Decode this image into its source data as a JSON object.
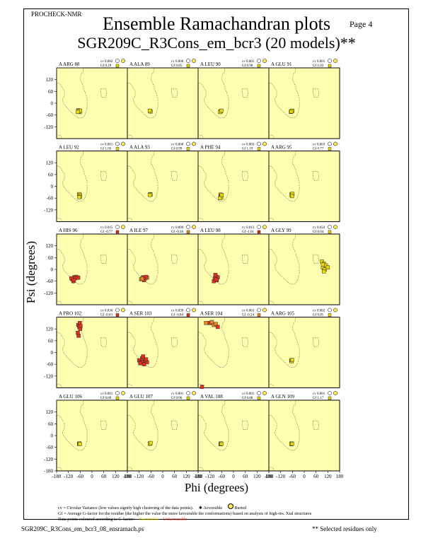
{
  "header": {
    "program": "PROCHECK-NMR",
    "page": "Page  4",
    "title": "Ensemble Ramachandran plots",
    "subtitle": "SGR209C_R3Cons_em_bcr3 (20 models)**"
  },
  "axes": {
    "xlabel": "Phi (degrees)",
    "ylabel": "Psi (degrees)",
    "xticks": [
      "-180",
      "-120",
      "-60",
      "0",
      "60",
      "120",
      "180"
    ],
    "yticks": [
      "120",
      "60",
      "0",
      "-60",
      "-120"
    ],
    "bottom_yticks": [
      "120",
      "60",
      "0",
      "-60",
      "-120",
      "-180"
    ]
  },
  "notes": {
    "line1": "cv = Circular Variance (low values signify high clustering of the data points).",
    "accessible": "Accessible",
    "buried": "Buried",
    "line2": "Gf = Average G-factor for the residue (the higher the value the more favourable the conformations) based on analysis of high-res. Xtal structures",
    "line3": "Data points coloured according to G-factor:",
    "favourable": "Favourable",
    "unfavourable": "Unfavourable"
  },
  "footer": {
    "left": "SGR209C_R3Cons_em_bcr3_08_ensramach.ps",
    "right": "** Selected residues only"
  },
  "colors": {
    "panel_bg": "#ffffb0",
    "favourable": "#e6d800",
    "unfavourable": "#e03020",
    "accessible": "#ffffff",
    "buried": "#ffee55"
  },
  "chart_data": {
    "type": "scatter",
    "xlim": [
      -180,
      180
    ],
    "ylim": [
      -180,
      180
    ],
    "panels": [
      {
        "label": "A ARG 88",
        "cv": "cv 0.002",
        "gf": "Gf  0.29",
        "points": [
          [
            -66,
            -40
          ],
          [
            -70,
            -35
          ],
          [
            -62,
            -45
          ],
          [
            -68,
            -42
          ],
          [
            -60,
            -38
          ],
          [
            -72,
            -44
          ]
        ]
      },
      {
        "label": "A ALA 89",
        "cv": "cv 0.000",
        "gf": "Gf  0.85",
        "points": [
          [
            -64,
            -40
          ],
          [
            -62,
            -42
          ],
          [
            -66,
            -38
          ]
        ]
      },
      {
        "label": "A LEU 90",
        "cv": "cv 0.001",
        "gf": "Gf  0.98",
        "points": [
          [
            -66,
            -42
          ],
          [
            -64,
            -40
          ],
          [
            -68,
            -45
          ],
          [
            -62,
            -38
          ]
        ]
      },
      {
        "label": "A GLU 91",
        "cv": "cv 0.001",
        "gf": "Gf  1.03",
        "points": [
          [
            -64,
            -40
          ],
          [
            -68,
            -44
          ],
          [
            -60,
            -38
          ],
          [
            -66,
            -42
          ]
        ]
      },
      {
        "label": "A LEU 92",
        "cv": "cv 0.001",
        "gf": "Gf  1.05",
        "points": [
          [
            -64,
            -42
          ],
          [
            -66,
            -40
          ],
          [
            -62,
            -44
          ],
          [
            -60,
            -52
          ],
          [
            -64,
            -55
          ]
        ]
      },
      {
        "label": "A ALA 93",
        "cv": "cv 0.000",
        "gf": "Gf  0.99",
        "points": [
          [
            -64,
            -40
          ],
          [
            -62,
            -42
          ],
          [
            -66,
            -44
          ]
        ]
      },
      {
        "label": "A PHE 94",
        "cv": "cv 0.003",
        "gf": "Gf  1.19",
        "points": [
          [
            -66,
            -42
          ],
          [
            -64,
            -48
          ],
          [
            -62,
            -55
          ],
          [
            -68,
            -60
          ],
          [
            -60,
            -44
          ]
        ]
      },
      {
        "label": "A ARG 95",
        "cv": "cv 0.003",
        "gf": "Gf  0.77",
        "points": [
          [
            -64,
            -40
          ],
          [
            -66,
            -44
          ],
          [
            -60,
            -38
          ],
          [
            -62,
            -50
          ]
        ]
      },
      {
        "label": "A HIS 96",
        "cv": "cv 0.015",
        "gf": "Gf -0.77",
        "points": [
          [
            -90,
            -40
          ],
          [
            -80,
            -38
          ],
          [
            -100,
            -50
          ],
          [
            -95,
            -60
          ],
          [
            -85,
            -45
          ],
          [
            -70,
            -42
          ],
          [
            -105,
            -45
          ],
          [
            -92,
            -55
          ]
        ]
      },
      {
        "label": "A ILE 97",
        "cv": "cv 0.009",
        "gf": "Gf -0.18",
        "points": [
          [
            -100,
            -40
          ],
          [
            -90,
            -45
          ],
          [
            -110,
            -50
          ],
          [
            -95,
            -55
          ],
          [
            -80,
            -42
          ],
          [
            -105,
            -48
          ],
          [
            -85,
            -38
          ]
        ]
      },
      {
        "label": "A LEU 98",
        "cv": "cv 0.013",
        "gf": "Gf -1.01",
        "points": [
          [
            -90,
            -35
          ],
          [
            -95,
            -45
          ],
          [
            -85,
            -55
          ],
          [
            -100,
            -60
          ],
          [
            -80,
            -40
          ],
          [
            -92,
            -28
          ],
          [
            -88,
            -50
          ]
        ]
      },
      {
        "label": "A GLY 99",
        "cv": "cv 0.033",
        "gf": "Gf  0.64",
        "points": [
          [
            90,
            40
          ],
          [
            100,
            30
          ],
          [
            95,
            10
          ],
          [
            105,
            0
          ],
          [
            110,
            20
          ],
          [
            120,
            10
          ],
          [
            100,
            -10
          ],
          [
            95,
            25
          ]
        ]
      },
      {
        "label": "A PRO 102",
        "cv": "cv 0.036",
        "gf": "Gf -0.63",
        "points": [
          [
            -70,
            140
          ],
          [
            -65,
            130
          ],
          [
            -60,
            120
          ],
          [
            -72,
            100
          ],
          [
            -68,
            85
          ],
          [
            -62,
            150
          ],
          [
            -58,
            135
          ]
        ]
      },
      {
        "label": "A SER 103",
        "cv": "cv 0.039",
        "gf": "Gf -0.84",
        "points": [
          [
            -120,
            -40
          ],
          [
            -110,
            -50
          ],
          [
            -100,
            -45
          ],
          [
            -90,
            -40
          ],
          [
            -80,
            -50
          ],
          [
            -105,
            -30
          ],
          [
            -95,
            -60
          ],
          [
            -115,
            -55
          ],
          [
            -85,
            -35
          ],
          [
            -100,
            -20
          ]
        ]
      },
      {
        "label": "A SER 104",
        "cv": "cv 0.063",
        "gf": "Gf -0.24",
        "points": [
          [
            -120,
            150
          ],
          [
            -100,
            140
          ],
          [
            -90,
            145
          ],
          [
            -80,
            130
          ],
          [
            -140,
            150
          ],
          [
            -110,
            155
          ],
          [
            -160,
            -175
          ]
        ]
      },
      {
        "label": "A ARG 105",
        "cv": "cv 0.002",
        "gf": "Gf  0.85",
        "points": [
          [
            -66,
            -40
          ],
          [
            -64,
            -44
          ],
          [
            -62,
            -38
          ]
        ]
      },
      {
        "label": "A GLU 106",
        "cv": "cv 0.001",
        "gf": "Gf  0.89",
        "points": [
          [
            -66,
            -42
          ],
          [
            -64,
            -40
          ],
          [
            -62,
            -44
          ]
        ]
      },
      {
        "label": "A GLU 107",
        "cv": "cv 0.001",
        "gf": "Gf  0.96",
        "points": [
          [
            -64,
            -40
          ],
          [
            -66,
            -42
          ],
          [
            -62,
            -38
          ]
        ]
      },
      {
        "label": "A VAL 108",
        "cv": "cv 0.001",
        "gf": "Gf  0.88",
        "points": [
          [
            -66,
            -44
          ],
          [
            -64,
            -40
          ],
          [
            -62,
            -42
          ]
        ]
      },
      {
        "label": "A GLN 109",
        "cv": "cv 0.001",
        "gf": "Gf  1.17",
        "points": [
          [
            -64,
            -40
          ],
          [
            -66,
            -44
          ],
          [
            -62,
            -42
          ]
        ]
      }
    ]
  }
}
